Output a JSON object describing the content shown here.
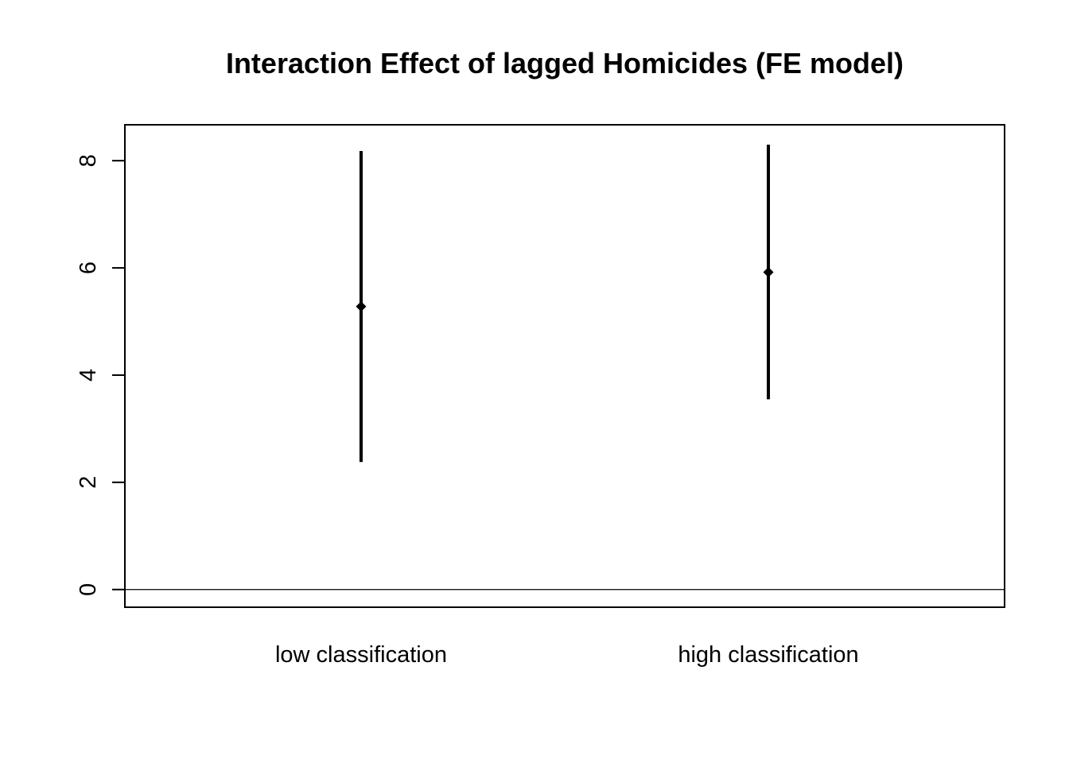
{
  "chart_data": {
    "type": "errorbar",
    "title": "Interaction Effect of lagged Homicides (FE model)",
    "xlabel": "",
    "ylabel": "",
    "categories": [
      "low classification",
      "high classification"
    ],
    "estimates": [
      5.28,
      5.92
    ],
    "lower": [
      2.38,
      3.55
    ],
    "upper": [
      8.18,
      8.3
    ],
    "yticks": [
      0,
      2,
      4,
      6,
      8
    ],
    "ylim": [
      -0.33,
      8.67
    ],
    "reference_line": 0,
    "grid": false,
    "legend": "none",
    "colors": {
      "mark": "#000000",
      "axis": "#000000",
      "background": "#ffffff"
    }
  }
}
